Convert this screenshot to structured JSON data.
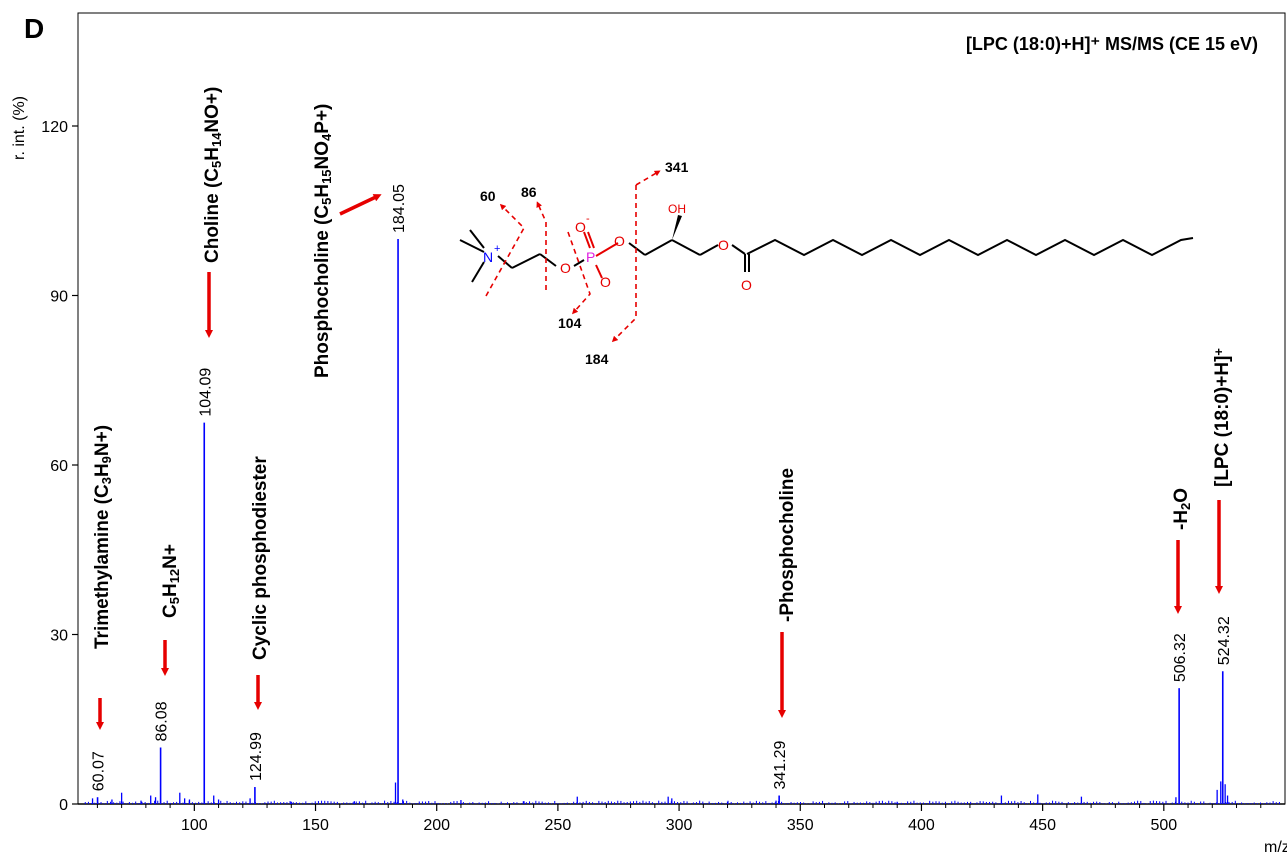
{
  "chart_data": {
    "type": "bar",
    "panel_letter": "D",
    "title": "[LPC (18:0)+H]⁺ MS/MS (CE 15 eV)",
    "xlabel": "m/z",
    "ylabel": "r. int. (%)",
    "xlim": [
      52,
      550
    ],
    "ylim": [
      0,
      140
    ],
    "xticks": [
      100,
      150,
      200,
      250,
      300,
      350,
      400,
      450,
      500
    ],
    "yticks": [
      0,
      30,
      60,
      90,
      120
    ],
    "series_color": "#0000ff",
    "arrow_color": "#e60000",
    "peaks": [
      {
        "mz": 60.07,
        "intensity": 1.2,
        "label": "60.07"
      },
      {
        "mz": 86.08,
        "intensity": 10.0,
        "label": "86.08"
      },
      {
        "mz": 104.09,
        "intensity": 67.5,
        "label": "104.09"
      },
      {
        "mz": 124.99,
        "intensity": 3.0,
        "label": "124.99"
      },
      {
        "mz": 184.05,
        "intensity": 100.0,
        "label": "184.05"
      },
      {
        "mz": 341.29,
        "intensity": 1.5,
        "label": "341.29"
      },
      {
        "mz": 506.32,
        "intensity": 20.5,
        "label": "506.32"
      },
      {
        "mz": 524.32,
        "intensity": 23.5,
        "label": "524.32"
      }
    ],
    "minor_peaks": [
      {
        "mz": 58.0,
        "intensity": 1.0
      },
      {
        "mz": 66.0,
        "intensity": 0.8
      },
      {
        "mz": 70.0,
        "intensity": 2.0
      },
      {
        "mz": 78.0,
        "intensity": 0.6
      },
      {
        "mz": 82.0,
        "intensity": 1.5
      },
      {
        "mz": 84.0,
        "intensity": 1.2
      },
      {
        "mz": 94.0,
        "intensity": 2.0
      },
      {
        "mz": 96.0,
        "intensity": 1.0
      },
      {
        "mz": 98.0,
        "intensity": 0.8
      },
      {
        "mz": 108.0,
        "intensity": 1.5
      },
      {
        "mz": 110.0,
        "intensity": 0.8
      },
      {
        "mz": 123.0,
        "intensity": 1.0
      },
      {
        "mz": 140.0,
        "intensity": 0.4
      },
      {
        "mz": 166.0,
        "intensity": 0.5
      },
      {
        "mz": 183.0,
        "intensity": 3.8
      },
      {
        "mz": 186.0,
        "intensity": 0.8
      },
      {
        "mz": 210.0,
        "intensity": 0.7
      },
      {
        "mz": 236.0,
        "intensity": 0.5
      },
      {
        "mz": 258.0,
        "intensity": 1.3
      },
      {
        "mz": 295.5,
        "intensity": 1.3
      },
      {
        "mz": 297.0,
        "intensity": 1.0
      },
      {
        "mz": 320.0,
        "intensity": 0.4
      },
      {
        "mz": 340.0,
        "intensity": 0.6
      },
      {
        "mz": 390.0,
        "intensity": 0.4
      },
      {
        "mz": 433.0,
        "intensity": 1.5
      },
      {
        "mz": 448.0,
        "intensity": 1.7
      },
      {
        "mz": 466.0,
        "intensity": 1.3
      },
      {
        "mz": 505.0,
        "intensity": 1.2
      },
      {
        "mz": 522.0,
        "intensity": 2.5
      },
      {
        "mz": 523.5,
        "intensity": 4.0
      },
      {
        "mz": 525.3,
        "intensity": 3.5
      },
      {
        "mz": 526.3,
        "intensity": 1.5
      }
    ],
    "annotations": [
      {
        "name": "annotation-trimethylamine",
        "parts": [
          [
            "Trimethylamine (C"
          ],
          [
            "3",
            "sub"
          ],
          [
            "H"
          ],
          [
            "9",
            "sub"
          ],
          [
            "N+)"
          ]
        ]
      },
      {
        "name": "annotation-c5h12n",
        "parts": [
          [
            "C"
          ],
          [
            "5",
            "sub"
          ],
          [
            "H"
          ],
          [
            "12",
            "sub"
          ],
          [
            "N+"
          ]
        ]
      },
      {
        "name": "annotation-choline",
        "parts": [
          [
            "Choline (C"
          ],
          [
            "5",
            "sub"
          ],
          [
            "H"
          ],
          [
            "14",
            "sub"
          ],
          [
            "NO+)"
          ]
        ]
      },
      {
        "name": "annotation-cyclic-phosphodiester",
        "parts": [
          [
            "Cyclic phosphodiester"
          ]
        ]
      },
      {
        "name": "annotation-phosphocholine",
        "parts": [
          [
            "Phosphocholine (C"
          ],
          [
            "5",
            "sub"
          ],
          [
            "H"
          ],
          [
            "15",
            "sub"
          ],
          [
            "NO"
          ],
          [
            "4",
            "sub"
          ],
          [
            "P+)"
          ]
        ]
      },
      {
        "name": "annotation-minus-phosphocholine",
        "parts": [
          [
            "-Phosphocholine"
          ]
        ]
      },
      {
        "name": "annotation-minus-h2o",
        "parts": [
          [
            "-H"
          ],
          [
            "2",
            "sub"
          ],
          [
            "O"
          ]
        ]
      },
      {
        "name": "annotation-precursor",
        "parts": [
          [
            "[LPC (18:0)+H]"
          ],
          [
            "+",
            "sup"
          ]
        ]
      }
    ]
  },
  "structure": {
    "fragment_labels": [
      "60",
      "86",
      "341",
      "104",
      "184"
    ],
    "atoms": {
      "n_plus": "N",
      "charge_plus": "+",
      "p": "P",
      "o_minus": "O",
      "charge_minus": "-",
      "o": "O",
      "oh": "OH"
    }
  }
}
